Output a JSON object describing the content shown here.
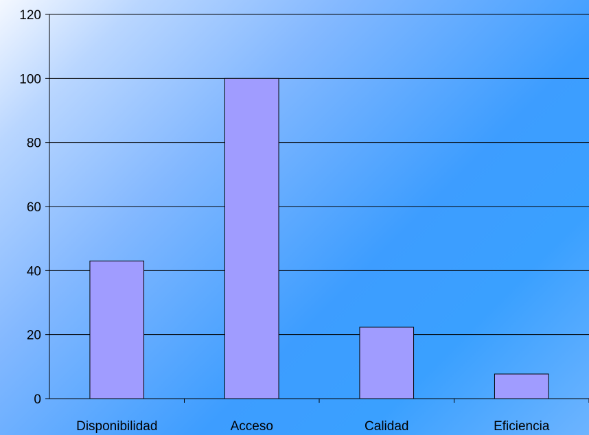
{
  "chart_data": {
    "type": "bar",
    "title": "",
    "xlabel": "",
    "ylabel": "",
    "categories": [
      "Disponibilidad",
      "Acceso",
      "Calidad",
      "Eficiencia"
    ],
    "values": [
      43,
      100,
      22.3,
      7.7
    ],
    "ylim": [
      0,
      120
    ],
    "yticks": [
      "0",
      "20",
      "40",
      "60",
      "80",
      "100",
      "120"
    ],
    "grid": true,
    "legend": "none",
    "colors": {
      "bar_fill": "#a09cff",
      "bar_stroke": "#000000",
      "gridline": "#000000"
    }
  }
}
